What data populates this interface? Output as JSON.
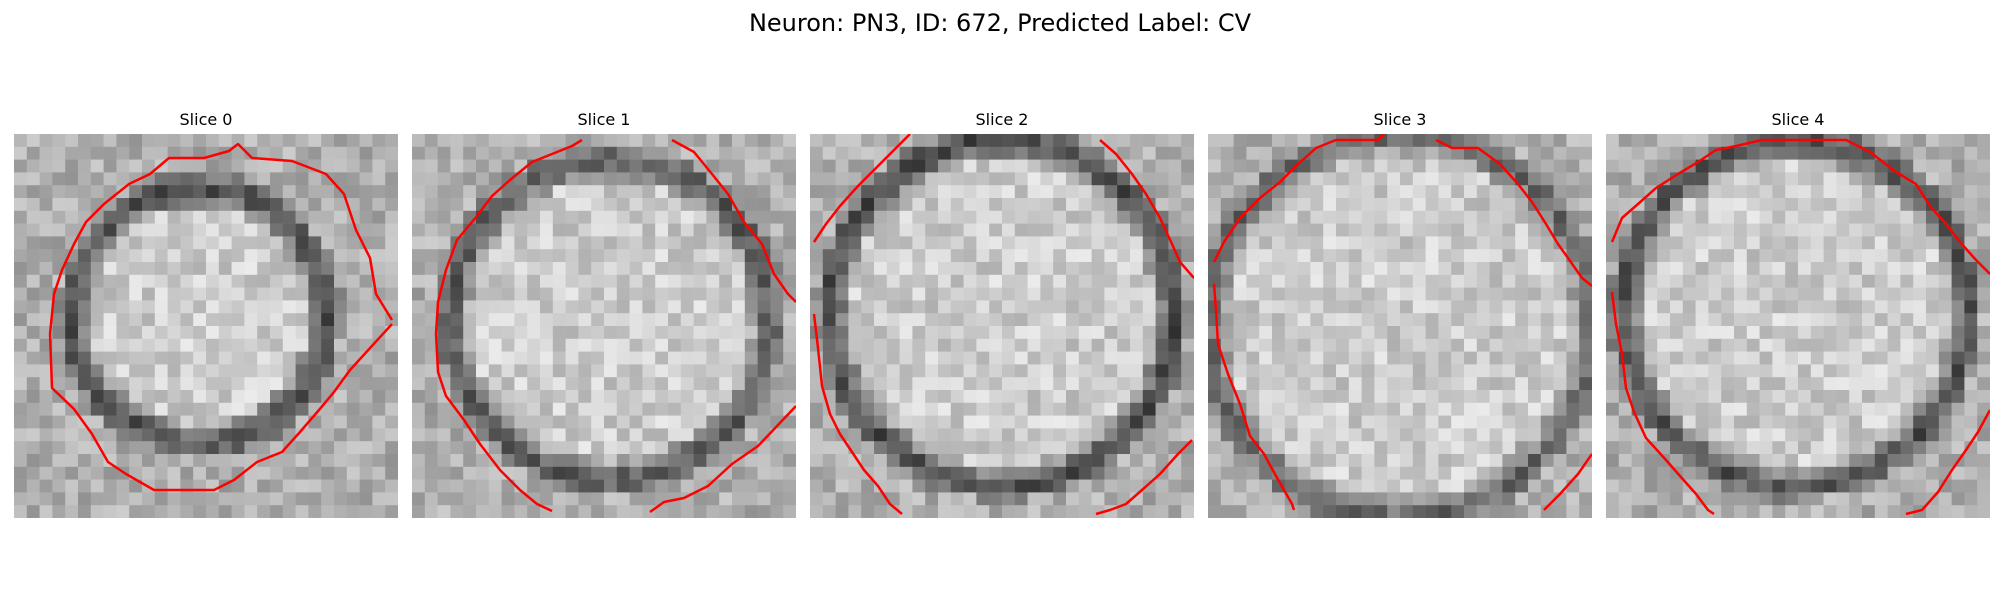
{
  "figure": {
    "title": "Neuron: PN3, ID: 672, Predicted Label: CV"
  },
  "panels": [
    {
      "title": "Slice 0"
    },
    {
      "title": "Slice 1"
    },
    {
      "title": "Slice 2"
    },
    {
      "title": "Slice 3"
    },
    {
      "title": "Slice 4"
    }
  ],
  "colors": {
    "contour": "#ff0000",
    "colormap": "grayscale"
  }
}
